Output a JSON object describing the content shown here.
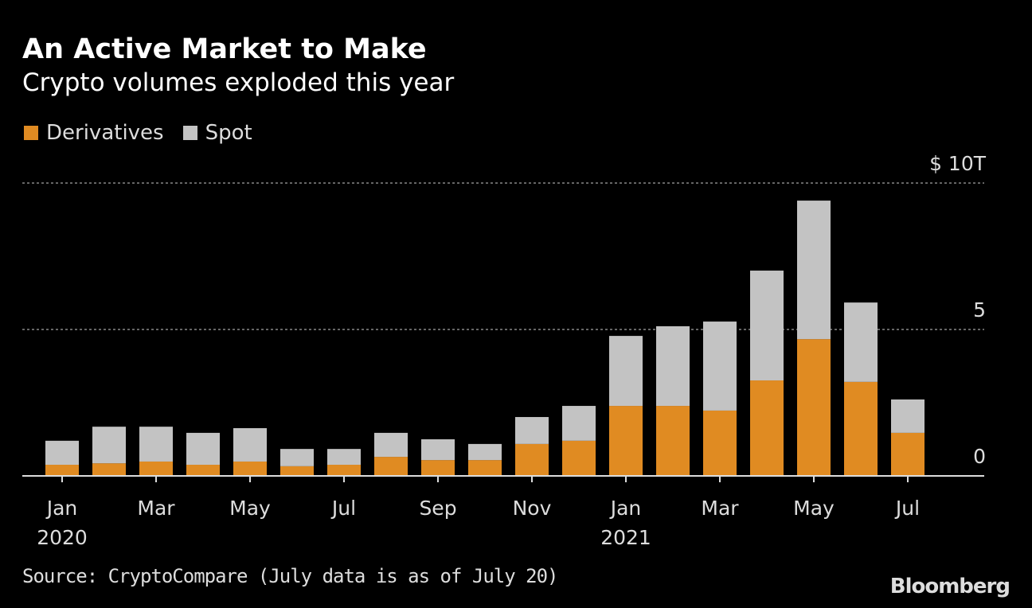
{
  "chart_data": {
    "type": "bar",
    "stacked": true,
    "title": "An Active Market to Make",
    "subtitle": "Crypto volumes exploded this year",
    "categories": [
      "Jan 2020",
      "Feb 2020",
      "Mar 2020",
      "Apr 2020",
      "May 2020",
      "Jun 2020",
      "Jul 2020",
      "Aug 2020",
      "Sep 2020",
      "Oct 2020",
      "Nov 2020",
      "Dec 2020",
      "Jan 2021",
      "Feb 2021",
      "Mar 2021",
      "Apr 2021",
      "May 2021",
      "Jun 2021",
      "Jul 2021"
    ],
    "x_tick_labels": [
      {
        "index": 0,
        "month": "Jan",
        "year": "2020"
      },
      {
        "index": 2,
        "month": "Mar"
      },
      {
        "index": 4,
        "month": "May"
      },
      {
        "index": 6,
        "month": "Jul"
      },
      {
        "index": 8,
        "month": "Sep"
      },
      {
        "index": 10,
        "month": "Nov"
      },
      {
        "index": 12,
        "month": "Jan",
        "year": "2021"
      },
      {
        "index": 14,
        "month": "Mar"
      },
      {
        "index": 16,
        "month": "May"
      },
      {
        "index": 18,
        "month": "Jul"
      }
    ],
    "series": [
      {
        "name": "Derivatives",
        "color": "#e08b22",
        "values": [
          0.38,
          0.43,
          0.49,
          0.38,
          0.49,
          0.33,
          0.38,
          0.65,
          0.54,
          0.54,
          1.09,
          1.2,
          2.39,
          2.39,
          2.23,
          3.26,
          4.67,
          3.21,
          1.47
        ]
      },
      {
        "name": "Spot",
        "color": "#c3c3c3",
        "values": [
          0.82,
          1.25,
          1.19,
          1.09,
          1.14,
          0.59,
          0.54,
          0.82,
          0.71,
          0.55,
          0.92,
          1.19,
          2.39,
          2.72,
          3.04,
          3.75,
          4.73,
          2.71,
          1.14
        ]
      }
    ],
    "y_ticks": [
      {
        "value": 0,
        "label": "0"
      },
      {
        "value": 5,
        "label": "5"
      },
      {
        "value": 10,
        "label": "$ 10T"
      }
    ],
    "ylim": [
      0,
      10
    ],
    "grid": true,
    "legend_position": "top-left"
  },
  "source": "Source: CryptoCompare (July data is as of July 20)",
  "logo": "Bloomberg"
}
